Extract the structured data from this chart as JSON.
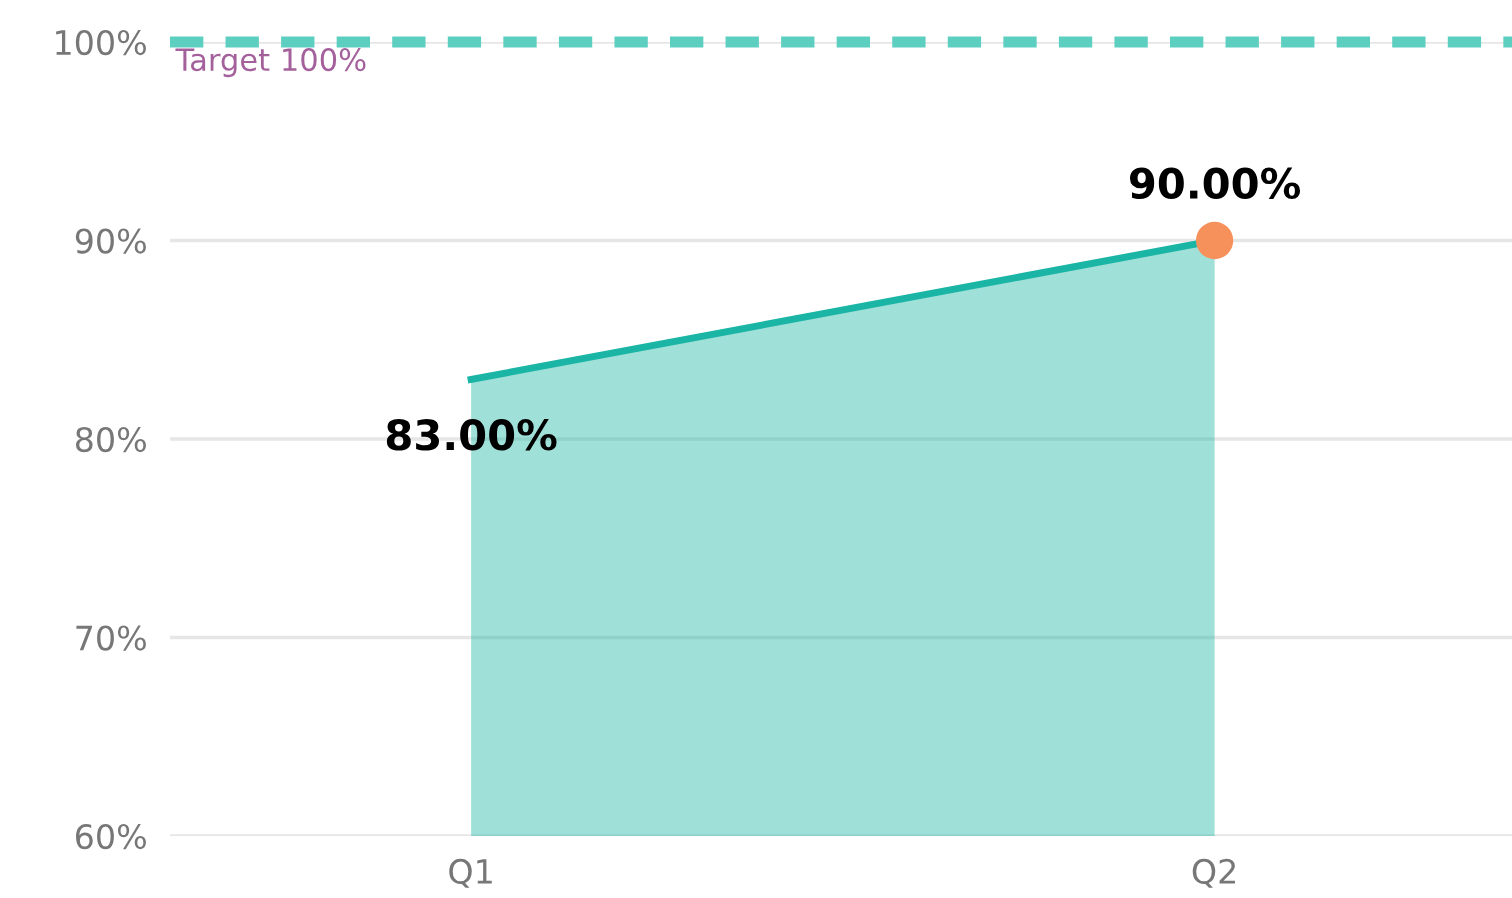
{
  "chart_data": {
    "type": "area",
    "categories": [
      "Q1",
      "Q2"
    ],
    "series": [
      {
        "color": "#1ab5a5",
        "values": [
          83,
          90
        ],
        "value_labels": [
          "83.00%",
          "90.00%"
        ]
      },
      {
        "type": "scatter",
        "color": "#f7915c",
        "x": [
          "Q2"
        ],
        "values": [
          90
        ]
      }
    ],
    "ylim": [
      60,
      100
    ],
    "yticks": [
      {
        "value": 60,
        "label": "60%"
      },
      {
        "value": 70,
        "label": "70%"
      },
      {
        "value": 80,
        "label": "80%"
      },
      {
        "value": 90,
        "label": "90%"
      },
      {
        "value": 100,
        "label": "100%"
      }
    ],
    "grid": "y",
    "legend": false,
    "ref_lines": [
      {
        "axis": "y",
        "value": 100,
        "label": "Target 100%",
        "color": "#5ccfc0",
        "line_style": "dashed"
      }
    ]
  }
}
